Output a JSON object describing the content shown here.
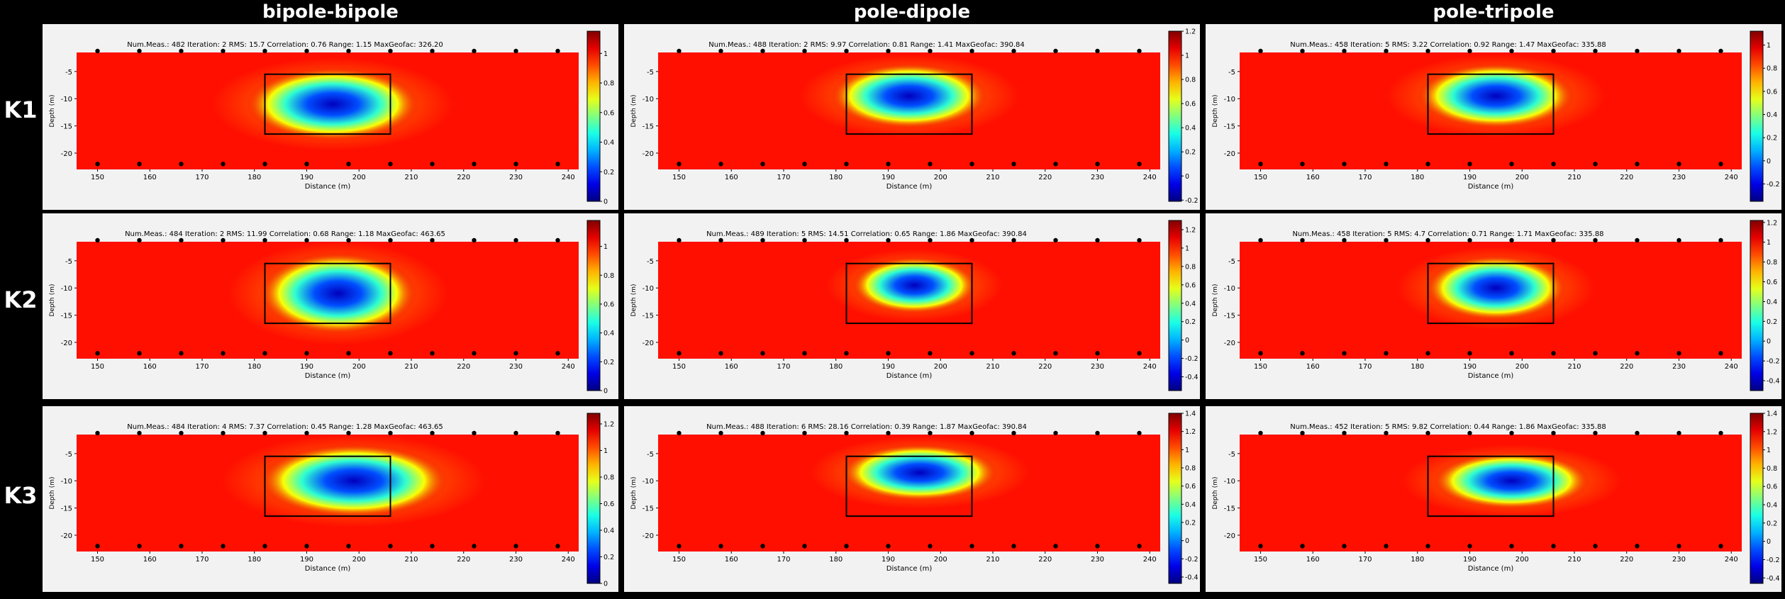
{
  "columns": [
    "bipole-bipole",
    "pole-dipole",
    "pole-tripole"
  ],
  "rows": [
    "K1",
    "K2",
    "K3"
  ],
  "chart_data": [
    {
      "type": "heatmap",
      "row": "K1",
      "column": "bipole-bipole",
      "stats": "Num.Meas.: 482   Iteration: 2   RMS: 15.7   Correlation: 0.76   Range: 1.15   MaxGeofac: 326.20",
      "xlabel": "Distance (m)",
      "ylabel": "Depth (m)",
      "xlim": [
        146,
        242
      ],
      "ylim": [
        -23,
        -1.5
      ],
      "xticks": [
        150,
        160,
        170,
        180,
        190,
        200,
        210,
        220,
        230,
        240
      ],
      "yticks": [
        -5,
        -10,
        -15,
        -20
      ],
      "colorbar_ticks": [
        0,
        0.2,
        0.4,
        0.6,
        0.8,
        1
      ],
      "colorbar_range": [
        0,
        1.15
      ],
      "anomaly": {
        "x": 195,
        "y": -11,
        "rx": 11,
        "ry": 4.5
      },
      "box": {
        "x": [
          182,
          206
        ],
        "y": [
          -5.5,
          -16.5
        ]
      },
      "electrodes_x": [
        150,
        158,
        166,
        174,
        182,
        190,
        198,
        206,
        214,
        222,
        230,
        238
      ],
      "electrodes_depth": [
        -0.5,
        -22
      ]
    },
    {
      "type": "heatmap",
      "row": "K1",
      "column": "pole-dipole",
      "stats": "Num.Meas.: 488   Iteration: 2   RMS: 9.97   Correlation: 0.81   Range: 1.41   MaxGeofac: 390.84",
      "xlabel": "Distance (m)",
      "ylabel": "Depth (m)",
      "xlim": [
        146,
        242
      ],
      "ylim": [
        -23,
        -1.5
      ],
      "xticks": [
        150,
        160,
        170,
        180,
        190,
        200,
        210,
        220,
        230,
        240
      ],
      "yticks": [
        -5,
        -10,
        -15,
        -20
      ],
      "colorbar_ticks": [
        -0.2,
        0,
        0.2,
        0.4,
        0.6,
        0.8,
        1,
        1.2
      ],
      "colorbar_range": [
        -0.21,
        1.2
      ],
      "anomaly": {
        "x": 194,
        "y": -9.5,
        "rx": 10,
        "ry": 4
      },
      "box": {
        "x": [
          182,
          206
        ],
        "y": [
          -5.5,
          -16.5
        ]
      },
      "electrodes_x": [
        150,
        158,
        166,
        174,
        182,
        190,
        198,
        206,
        214,
        222,
        230,
        238
      ],
      "electrodes_depth": [
        -0.5,
        -22
      ]
    },
    {
      "type": "heatmap",
      "row": "K1",
      "column": "pole-tripole",
      "stats": "Num.Meas.: 458   Iteration: 5   RMS: 3.22   Correlation: 0.92   Range: 1.47   MaxGeofac: 335.88",
      "xlabel": "Distance (m)",
      "ylabel": "Depth (m)",
      "xlim": [
        146,
        242
      ],
      "ylim": [
        -23,
        -1.5
      ],
      "xticks": [
        150,
        160,
        170,
        180,
        190,
        200,
        210,
        220,
        230,
        240
      ],
      "yticks": [
        -5,
        -10,
        -15,
        -20
      ],
      "colorbar_ticks": [
        -0.2,
        0,
        0.2,
        0.4,
        0.6,
        0.8,
        1
      ],
      "colorbar_range": [
        -0.35,
        1.12
      ],
      "anomaly": {
        "x": 195,
        "y": -9.5,
        "rx": 10,
        "ry": 4
      },
      "box": {
        "x": [
          182,
          206
        ],
        "y": [
          -5.5,
          -16.5
        ]
      },
      "electrodes_x": [
        150,
        158,
        166,
        174,
        182,
        190,
        198,
        206,
        214,
        222,
        230,
        238
      ],
      "electrodes_depth": [
        -0.5,
        -22
      ]
    },
    {
      "type": "heatmap",
      "row": "K2",
      "column": "bipole-bipole",
      "stats": "Num.Meas.: 484   Iteration: 2   RMS: 11.99   Correlation: 0.68   Range: 1.18   MaxGeofac: 463.65",
      "xlabel": "Distance (m)",
      "ylabel": "Depth (m)",
      "xlim": [
        146,
        242
      ],
      "ylim": [
        -23,
        -1.5
      ],
      "xticks": [
        150,
        160,
        170,
        180,
        190,
        200,
        210,
        220,
        230,
        240
      ],
      "yticks": [
        -5,
        -10,
        -15,
        -20
      ],
      "colorbar_ticks": [
        0,
        0.2,
        0.4,
        0.6,
        0.8,
        1
      ],
      "colorbar_range": [
        0,
        1.18
      ],
      "anomaly": {
        "x": 196,
        "y": -11,
        "rx": 10,
        "ry": 5
      },
      "box": {
        "x": [
          182,
          206
        ],
        "y": [
          -5.5,
          -16.5
        ]
      },
      "electrodes_x": [
        150,
        158,
        166,
        174,
        182,
        190,
        198,
        206,
        214,
        222,
        230,
        238
      ],
      "electrodes_depth": [
        -0.5,
        -22
      ]
    },
    {
      "type": "heatmap",
      "row": "K2",
      "column": "pole-dipole",
      "stats": "Num.Meas.: 489   Iteration: 5   RMS: 14.51   Correlation: 0.65   Range: 1.86   MaxGeofac: 390.84",
      "xlabel": "Distance (m)",
      "ylabel": "Depth (m)",
      "xlim": [
        146,
        242
      ],
      "ylim": [
        -23,
        -1.5
      ],
      "xticks": [
        150,
        160,
        170,
        180,
        190,
        200,
        210,
        220,
        230,
        240
      ],
      "yticks": [
        -5,
        -10,
        -15,
        -20
      ],
      "colorbar_ticks": [
        -0.4,
        -0.2,
        0,
        0.2,
        0.4,
        0.6,
        0.8,
        1,
        1.2
      ],
      "colorbar_range": [
        -0.55,
        1.3
      ],
      "anomaly": {
        "x": 195,
        "y": -9.5,
        "rx": 8,
        "ry": 3.5
      },
      "box": {
        "x": [
          182,
          206
        ],
        "y": [
          -5.5,
          -16.5
        ]
      },
      "electrodes_x": [
        150,
        158,
        166,
        174,
        182,
        190,
        198,
        206,
        214,
        222,
        230,
        238
      ],
      "electrodes_depth": [
        -0.5,
        -22
      ]
    },
    {
      "type": "heatmap",
      "row": "K2",
      "column": "pole-tripole",
      "stats": "Num.Meas.: 458   Iteration: 5   RMS: 4.7   Correlation: 0.71   Range: 1.71   MaxGeofac: 335.88",
      "xlabel": "Distance (m)",
      "ylabel": "Depth (m)",
      "xlim": [
        146,
        242
      ],
      "ylim": [
        -23,
        -1.5
      ],
      "xticks": [
        150,
        160,
        170,
        180,
        190,
        200,
        210,
        220,
        230,
        240
      ],
      "yticks": [
        -5,
        -10,
        -15,
        -20
      ],
      "colorbar_ticks": [
        -0.4,
        -0.2,
        0,
        0.2,
        0.4,
        0.6,
        0.8,
        1,
        1.2
      ],
      "colorbar_range": [
        -0.5,
        1.22
      ],
      "anomaly": {
        "x": 195,
        "y": -10,
        "rx": 9,
        "ry": 4
      },
      "box": {
        "x": [
          182,
          206
        ],
        "y": [
          -5.5,
          -16.5
        ]
      },
      "electrodes_x": [
        150,
        158,
        166,
        174,
        182,
        190,
        198,
        206,
        214,
        222,
        230,
        238
      ],
      "electrodes_depth": [
        -0.5,
        -22
      ]
    },
    {
      "type": "heatmap",
      "row": "K3",
      "column": "bipole-bipole",
      "stats": "Num.Meas.: 484   Iteration: 4   RMS: 7.37   Correlation: 0.45   Range: 1.28   MaxGeofac: 463.65",
      "xlabel": "Distance (m)",
      "ylabel": "Depth (m)",
      "xlim": [
        146,
        242
      ],
      "ylim": [
        -23,
        -1.5
      ],
      "xticks": [
        150,
        160,
        170,
        180,
        190,
        200,
        210,
        220,
        230,
        240
      ],
      "yticks": [
        -5,
        -10,
        -15,
        -20
      ],
      "colorbar_ticks": [
        0,
        0.2,
        0.4,
        0.6,
        0.8,
        1,
        1.2
      ],
      "colorbar_range": [
        0,
        1.28
      ],
      "anomaly": {
        "x": 199,
        "y": -10,
        "rx": 12,
        "ry": 4.5
      },
      "box": {
        "x": [
          182,
          206
        ],
        "y": [
          -5.5,
          -16.5
        ]
      },
      "electrodes_x": [
        150,
        158,
        166,
        174,
        182,
        190,
        198,
        206,
        214,
        222,
        230,
        238
      ],
      "electrodes_depth": [
        -0.5,
        -22
      ]
    },
    {
      "type": "heatmap",
      "row": "K3",
      "column": "pole-dipole",
      "stats": "Num.Meas.: 488   Iteration: 6   RMS: 28.16   Correlation: 0.39   Range: 1.87   MaxGeofac: 390.84",
      "xlabel": "Distance (m)",
      "ylabel": "Depth (m)",
      "xlim": [
        146,
        242
      ],
      "ylim": [
        -23,
        -1.5
      ],
      "xticks": [
        150,
        160,
        170,
        180,
        190,
        200,
        210,
        220,
        230,
        240
      ],
      "yticks": [
        -5,
        -10,
        -15,
        -20
      ],
      "colorbar_ticks": [
        -0.4,
        -0.2,
        0,
        0.2,
        0.4,
        0.6,
        0.8,
        1,
        1.2,
        1.4
      ],
      "colorbar_range": [
        -0.47,
        1.4
      ],
      "anomaly": {
        "x": 196,
        "y": -8.5,
        "rx": 10,
        "ry": 3.5
      },
      "box": {
        "x": [
          182,
          206
        ],
        "y": [
          -5.5,
          -16.5
        ]
      },
      "electrodes_x": [
        150,
        158,
        166,
        174,
        182,
        190,
        198,
        206,
        214,
        222,
        230,
        238
      ],
      "electrodes_depth": [
        -0.5,
        -22
      ]
    },
    {
      "type": "heatmap",
      "row": "K3",
      "column": "pole-tripole",
      "stats": "Num.Meas.: 452   Iteration: 5   RMS: 9.82   Correlation: 0.44   Range: 1.86   MaxGeofac: 335.88",
      "xlabel": "Distance (m)",
      "ylabel": "Depth (m)",
      "xlim": [
        146,
        242
      ],
      "ylim": [
        -23,
        -1.5
      ],
      "xticks": [
        150,
        160,
        170,
        180,
        190,
        200,
        210,
        220,
        230,
        240
      ],
      "yticks": [
        -5,
        -10,
        -15,
        -20
      ],
      "colorbar_ticks": [
        -0.4,
        -0.2,
        0,
        0.2,
        0.4,
        0.6,
        0.8,
        1,
        1.2,
        1.4
      ],
      "colorbar_range": [
        -0.46,
        1.4
      ],
      "anomaly": {
        "x": 198,
        "y": -10,
        "rx": 10,
        "ry": 3.5
      },
      "box": {
        "x": [
          182,
          206
        ],
        "y": [
          -5.5,
          -16.5
        ]
      },
      "electrodes_x": [
        150,
        158,
        166,
        174,
        182,
        190,
        198,
        206,
        214,
        222,
        230,
        238
      ],
      "electrodes_depth": [
        -0.5,
        -22
      ]
    }
  ]
}
